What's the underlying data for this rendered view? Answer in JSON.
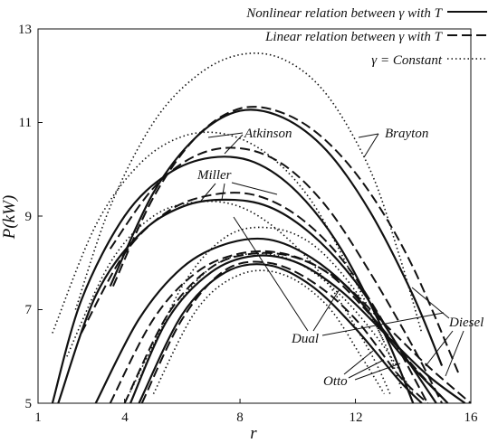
{
  "chart_data": {
    "type": "line",
    "xlabel": "r",
    "ylabel": "P(kW)",
    "xlim": [
      1,
      16
    ],
    "ylim": [
      5,
      13
    ],
    "x_ticks": [
      "1",
      "4",
      "8",
      "12",
      "16"
    ],
    "y_ticks": [
      "5",
      "7",
      "9",
      "11",
      "13"
    ],
    "grid": false,
    "legend_position": "top-right",
    "legend": [
      {
        "label": "Nonlinear relation between γ with T",
        "style": "solid"
      },
      {
        "label": "Linear relation between γ with T",
        "style": "dashed"
      },
      {
        "label": "γ = Constant",
        "style": "dotted"
      }
    ],
    "annotations": [
      {
        "text": "Brayton"
      },
      {
        "text": "Atkinson"
      },
      {
        "text": "Miller"
      },
      {
        "text": "Dual"
      },
      {
        "text": "Diesel"
      },
      {
        "text": "Otto"
      }
    ],
    "series": [
      {
        "cycle": "Brayton",
        "style": "solid",
        "points": [
          [
            3.5,
            7.5
          ],
          [
            5,
            9.5
          ],
          [
            6.5,
            10.7
          ],
          [
            8,
            11.25
          ],
          [
            9.5,
            11.1
          ],
          [
            11,
            10.4
          ],
          [
            12.5,
            9.1
          ],
          [
            14,
            7.3
          ],
          [
            15,
            5.8
          ]
        ]
      },
      {
        "cycle": "Brayton",
        "style": "dashed",
        "points": [
          [
            3.6,
            7.5
          ],
          [
            5,
            9.4
          ],
          [
            6.5,
            10.7
          ],
          [
            8,
            11.3
          ],
          [
            9.5,
            11.2
          ],
          [
            11,
            10.6
          ],
          [
            12.5,
            9.5
          ],
          [
            14,
            7.9
          ],
          [
            15.6,
            5.6
          ]
        ]
      },
      {
        "cycle": "Brayton",
        "style": "dotted",
        "points": [
          [
            2.3,
            7.0
          ],
          [
            3.5,
            9.2
          ],
          [
            5,
            11.0
          ],
          [
            6.5,
            12.0
          ],
          [
            8,
            12.45
          ],
          [
            9.5,
            12.35
          ],
          [
            11,
            11.6
          ],
          [
            12.5,
            10.0
          ],
          [
            13.5,
            8.2
          ],
          [
            14.3,
            6.5
          ]
        ]
      },
      {
        "cycle": "Atkinson",
        "style": "solid",
        "points": [
          [
            1.5,
            5.0
          ],
          [
            2.5,
            7.2
          ],
          [
            4,
            9.0
          ],
          [
            5.5,
            9.9
          ],
          [
            7,
            10.25
          ],
          [
            8.5,
            10.15
          ],
          [
            10,
            9.5
          ],
          [
            11.5,
            8.3
          ],
          [
            13,
            6.5
          ],
          [
            14,
            5.0
          ]
        ]
      },
      {
        "cycle": "Atkinson",
        "style": "dashed",
        "points": [
          [
            3.5,
            8.3
          ],
          [
            5,
            9.6
          ],
          [
            6.5,
            10.3
          ],
          [
            8,
            10.45
          ],
          [
            9.5,
            10.1
          ],
          [
            11,
            9.2
          ],
          [
            12.5,
            7.8
          ],
          [
            14,
            6.2
          ],
          [
            15,
            5.0
          ]
        ]
      },
      {
        "cycle": "Atkinson",
        "style": "dotted",
        "points": [
          [
            1.5,
            6.5
          ],
          [
            3,
            8.8
          ],
          [
            4.5,
            10.1
          ],
          [
            6,
            10.7
          ],
          [
            7.5,
            10.75
          ],
          [
            9,
            10.3
          ],
          [
            10.5,
            9.3
          ],
          [
            12,
            7.6
          ],
          [
            13,
            6.3
          ]
        ]
      },
      {
        "cycle": "Miller",
        "style": "solid",
        "points": [
          [
            1.7,
            5.0
          ],
          [
            3,
            7.3
          ],
          [
            4.5,
            8.6
          ],
          [
            6,
            9.2
          ],
          [
            7.5,
            9.35
          ],
          [
            9,
            9.2
          ],
          [
            10.5,
            8.6
          ],
          [
            12,
            7.6
          ],
          [
            13.5,
            6.2
          ],
          [
            14.8,
            5.0
          ]
        ]
      },
      {
        "cycle": "Miller",
        "style": "dashed",
        "points": [
          [
            2.5,
            6.5
          ],
          [
            4,
            8.2
          ],
          [
            5.5,
            9.1
          ],
          [
            7,
            9.45
          ],
          [
            8.5,
            9.45
          ],
          [
            10,
            9.0
          ],
          [
            11.5,
            8.1
          ],
          [
            13,
            6.7
          ],
          [
            14.5,
            5.0
          ]
        ]
      },
      {
        "cycle": "Miller",
        "style": "dotted",
        "points": [
          [
            2.0,
            6.0
          ],
          [
            3.5,
            8.0
          ],
          [
            5,
            9.0
          ],
          [
            6.5,
            9.3
          ],
          [
            8,
            9.2
          ],
          [
            9.5,
            8.6
          ],
          [
            11,
            7.6
          ],
          [
            12.5,
            6.1
          ],
          [
            13.2,
            5.2
          ]
        ]
      },
      {
        "cycle": "Dual",
        "style": "solid",
        "points": [
          [
            3.0,
            5.0
          ],
          [
            4.5,
            6.8
          ],
          [
            6,
            7.9
          ],
          [
            7.5,
            8.4
          ],
          [
            9,
            8.5
          ],
          [
            10.5,
            8.1
          ],
          [
            12,
            7.3
          ],
          [
            13.5,
            6.1
          ],
          [
            15.2,
            5.0
          ]
        ]
      },
      {
        "cycle": "Dual",
        "style": "dashed",
        "points": [
          [
            3.5,
            5.0
          ],
          [
            5,
            6.8
          ],
          [
            6.5,
            7.8
          ],
          [
            8,
            8.2
          ],
          [
            9.5,
            8.2
          ],
          [
            11,
            7.8
          ],
          [
            12.5,
            6.9
          ],
          [
            14,
            5.8
          ],
          [
            15.2,
            5.0
          ]
        ]
      },
      {
        "cycle": "Dual",
        "style": "dotted",
        "points": [
          [
            4.5,
            5.5
          ],
          [
            6,
            7.5
          ],
          [
            7.5,
            8.55
          ],
          [
            9,
            8.75
          ],
          [
            10.5,
            8.4
          ],
          [
            12,
            7.4
          ],
          [
            13,
            6.3
          ],
          [
            13.6,
            5.3
          ]
        ]
      },
      {
        "cycle": "Diesel",
        "style": "solid",
        "points": [
          [
            4.2,
            5.0
          ],
          [
            5.5,
            6.8
          ],
          [
            7,
            7.8
          ],
          [
            8.5,
            8.15
          ],
          [
            10,
            8.0
          ],
          [
            11.5,
            7.4
          ],
          [
            13,
            6.5
          ],
          [
            14.5,
            5.6
          ],
          [
            15.8,
            5.0
          ]
        ]
      },
      {
        "cycle": "Diesel",
        "style": "dashed",
        "points": [
          [
            4.0,
            5.0
          ],
          [
            5.5,
            6.9
          ],
          [
            7,
            7.9
          ],
          [
            8.5,
            8.2
          ],
          [
            10,
            8.1
          ],
          [
            11.5,
            7.6
          ],
          [
            13,
            6.7
          ],
          [
            14.5,
            5.8
          ],
          [
            16.0,
            5.0
          ]
        ]
      },
      {
        "cycle": "Diesel",
        "style": "dotted",
        "points": [
          [
            4.0,
            5.0
          ],
          [
            5.5,
            6.8
          ],
          [
            7,
            7.9
          ],
          [
            8.5,
            8.2
          ],
          [
            10,
            8.0
          ],
          [
            11.5,
            7.3
          ],
          [
            13,
            6.2
          ],
          [
            14,
            5.2
          ]
        ]
      },
      {
        "cycle": "Otto",
        "style": "solid",
        "points": [
          [
            4.5,
            5.0
          ],
          [
            6,
            6.9
          ],
          [
            7.5,
            7.8
          ],
          [
            9,
            7.95
          ],
          [
            10.5,
            7.5
          ],
          [
            12,
            6.6
          ],
          [
            13.5,
            5.5
          ],
          [
            14.3,
            5.0
          ]
        ]
      },
      {
        "cycle": "Otto",
        "style": "dashed",
        "points": [
          [
            4.6,
            5.0
          ],
          [
            6,
            6.8
          ],
          [
            7.5,
            7.85
          ],
          [
            9,
            8.0
          ],
          [
            10.5,
            7.6
          ],
          [
            12,
            6.8
          ],
          [
            13.5,
            5.6
          ],
          [
            14.5,
            5.0
          ]
        ]
      },
      {
        "cycle": "Otto",
        "style": "dotted",
        "points": [
          [
            5.0,
            5.2
          ],
          [
            6.5,
            7.0
          ],
          [
            8,
            7.75
          ],
          [
            9.5,
            7.75
          ],
          [
            11,
            7.1
          ],
          [
            12.2,
            6.0
          ],
          [
            13,
            5.2
          ]
        ]
      }
    ]
  }
}
